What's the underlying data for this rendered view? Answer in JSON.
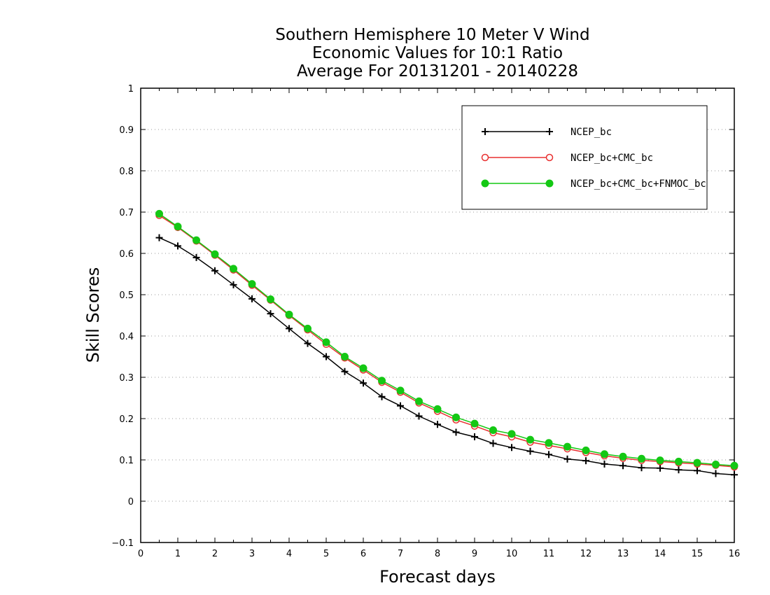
{
  "chart_data": {
    "type": "line",
    "title": [
      "Southern Hemisphere 10 Meter V Wind",
      "Economic Values for 10:1 Ratio",
      "Average For 20131201 - 20140228"
    ],
    "xlabel": "Forecast days",
    "ylabel": "Skill Scores",
    "xlim": [
      0,
      16
    ],
    "ylim": [
      -0.1,
      1
    ],
    "xticks": [
      "0",
      "1",
      "2",
      "3",
      "4",
      "5",
      "6",
      "7",
      "8",
      "9",
      "10",
      "11",
      "12",
      "13",
      "14",
      "15",
      "16"
    ],
    "yticks": [
      "−0.1",
      "0",
      "0.1",
      "0.2",
      "0.3",
      "0.4",
      "0.5",
      "0.6",
      "0.7",
      "0.8",
      "0.9",
      "1"
    ],
    "grid": "horizontal dotted",
    "legend_position": "top-right",
    "x": [
      0.5,
      1,
      1.5,
      2,
      2.5,
      3,
      3.5,
      4,
      4.5,
      5,
      5.5,
      6,
      6.5,
      7,
      7.5,
      8,
      8.5,
      9,
      9.5,
      10,
      10.5,
      11,
      11.5,
      12,
      12.5,
      13,
      13.5,
      14,
      14.5,
      15,
      15.5,
      16
    ],
    "series": [
      {
        "name": "NCEP_bc",
        "color": "#000000",
        "marker": "plus",
        "values": [
          0.638,
          0.618,
          0.59,
          0.558,
          0.524,
          0.49,
          0.454,
          0.418,
          0.382,
          0.35,
          0.314,
          0.286,
          0.253,
          0.231,
          0.206,
          0.186,
          0.167,
          0.156,
          0.14,
          0.13,
          0.121,
          0.113,
          0.102,
          0.098,
          0.09,
          0.086,
          0.081,
          0.08,
          0.076,
          0.074,
          0.067,
          0.064
        ]
      },
      {
        "name": "NCEP_bc+CMC_bc",
        "color": "#e83030",
        "marker": "open-circle",
        "values": [
          0.692,
          0.663,
          0.63,
          0.596,
          0.56,
          0.523,
          0.487,
          0.45,
          0.415,
          0.38,
          0.347,
          0.318,
          0.288,
          0.264,
          0.238,
          0.218,
          0.197,
          0.182,
          0.166,
          0.156,
          0.143,
          0.135,
          0.127,
          0.118,
          0.11,
          0.104,
          0.099,
          0.096,
          0.093,
          0.09,
          0.087,
          0.083
        ]
      },
      {
        "name": "NCEP_bc+CMC_bc+FNMOC_bc",
        "color": "#14c814",
        "marker": "filled-circle",
        "values": [
          0.696,
          0.665,
          0.632,
          0.598,
          0.563,
          0.526,
          0.489,
          0.452,
          0.418,
          0.385,
          0.35,
          0.322,
          0.292,
          0.268,
          0.242,
          0.223,
          0.203,
          0.188,
          0.172,
          0.163,
          0.149,
          0.141,
          0.132,
          0.123,
          0.114,
          0.108,
          0.103,
          0.099,
          0.096,
          0.093,
          0.089,
          0.086
        ]
      }
    ]
  }
}
